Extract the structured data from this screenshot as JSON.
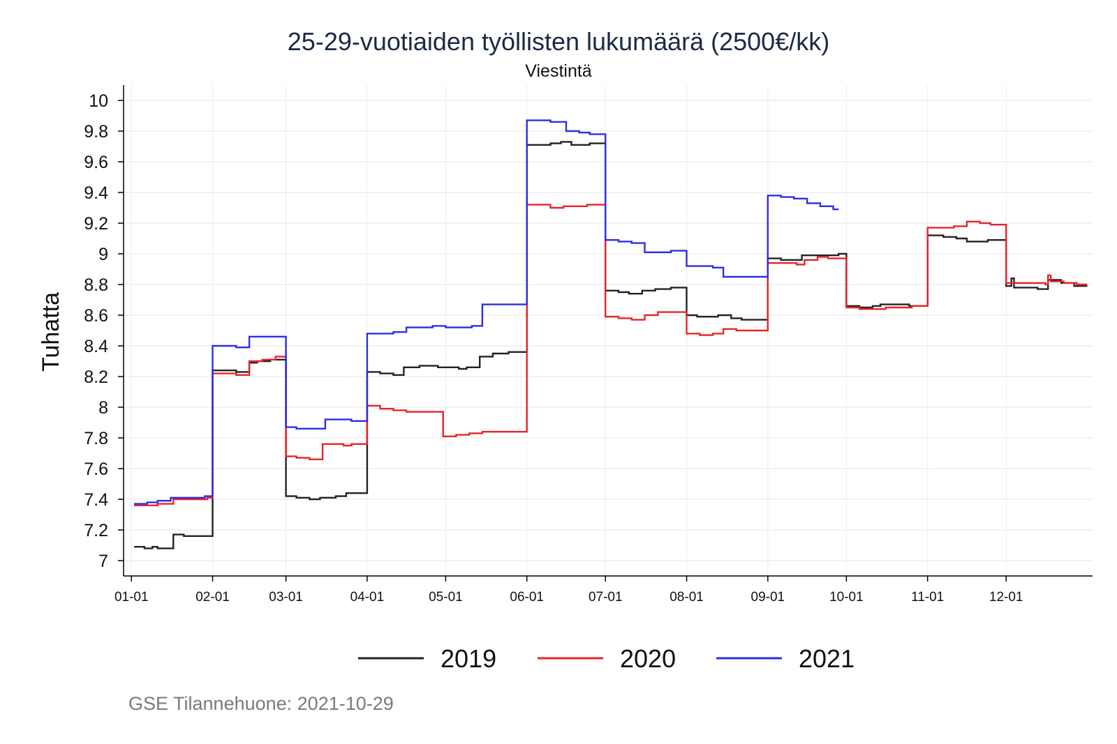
{
  "chart_data": {
    "type": "line",
    "step": true,
    "title": "25-29-vuotiaiden työllisten lukumäärä (2500€/kk)",
    "subtitle": "Viestintä",
    "ylabel": "Tuhatta",
    "xlabel": "",
    "source": "GSE Tilannehuone: 2021-10-29",
    "ylim": [
      6.9,
      10.1
    ],
    "xlim_days": [
      -3,
      367
    ],
    "y_ticks": [
      "7",
      "7.2",
      "7.4",
      "7.6",
      "7.8",
      "8",
      "8.2",
      "8.4",
      "8.6",
      "8.8",
      "9",
      "9.2",
      "9.4",
      "9.6",
      "9.8",
      "10"
    ],
    "x_ticks": [
      {
        "label": "01-01",
        "day": 0
      },
      {
        "label": "02-01",
        "day": 31
      },
      {
        "label": "03-01",
        "day": 59
      },
      {
        "label": "04-01",
        "day": 90
      },
      {
        "label": "05-01",
        "day": 120
      },
      {
        "label": "06-01",
        "day": 151
      },
      {
        "label": "07-01",
        "day": 181
      },
      {
        "label": "08-01",
        "day": 212
      },
      {
        "label": "09-01",
        "day": 243
      },
      {
        "label": "10-01",
        "day": 273
      },
      {
        "label": "11-01",
        "day": 304
      },
      {
        "label": "12-01",
        "day": 334
      }
    ],
    "legend_position": "bottom",
    "series": [
      {
        "name": "2019",
        "color": "#222222",
        "points": [
          [
            1,
            7.09
          ],
          [
            5,
            7.08
          ],
          [
            8,
            7.09
          ],
          [
            10,
            7.08
          ],
          [
            16,
            7.17
          ],
          [
            20,
            7.16
          ],
          [
            25,
            7.16
          ],
          [
            31,
            8.24
          ],
          [
            37,
            8.24
          ],
          [
            40,
            8.23
          ],
          [
            45,
            8.29
          ],
          [
            48,
            8.3
          ],
          [
            53,
            8.31
          ],
          [
            59,
            7.42
          ],
          [
            63,
            7.41
          ],
          [
            68,
            7.4
          ],
          [
            72,
            7.41
          ],
          [
            78,
            7.42
          ],
          [
            82,
            7.44
          ],
          [
            90,
            8.23
          ],
          [
            95,
            8.22
          ],
          [
            100,
            8.21
          ],
          [
            104,
            8.26
          ],
          [
            110,
            8.27
          ],
          [
            117,
            8.26
          ],
          [
            120,
            8.26
          ],
          [
            125,
            8.25
          ],
          [
            128,
            8.26
          ],
          [
            133,
            8.33
          ],
          [
            138,
            8.35
          ],
          [
            144,
            8.36
          ],
          [
            151,
            9.71
          ],
          [
            155,
            9.71
          ],
          [
            160,
            9.72
          ],
          [
            164,
            9.73
          ],
          [
            168,
            9.71
          ],
          [
            172,
            9.71
          ],
          [
            175,
            9.72
          ],
          [
            181,
            8.76
          ],
          [
            186,
            8.75
          ],
          [
            190,
            8.74
          ],
          [
            195,
            8.76
          ],
          [
            200,
            8.77
          ],
          [
            206,
            8.78
          ],
          [
            212,
            8.6
          ],
          [
            216,
            8.59
          ],
          [
            220,
            8.59
          ],
          [
            224,
            8.6
          ],
          [
            229,
            8.58
          ],
          [
            233,
            8.57
          ],
          [
            238,
            8.57
          ],
          [
            243,
            8.97
          ],
          [
            248,
            8.96
          ],
          [
            253,
            8.96
          ],
          [
            256,
            8.99
          ],
          [
            262,
            8.99
          ],
          [
            266,
            8.99
          ],
          [
            270,
            9.0
          ],
          [
            273,
            8.66
          ],
          [
            278,
            8.65
          ],
          [
            283,
            8.66
          ],
          [
            286,
            8.67
          ],
          [
            292,
            8.67
          ],
          [
            297,
            8.66
          ],
          [
            304,
            9.12
          ],
          [
            310,
            9.11
          ],
          [
            315,
            9.1
          ],
          [
            319,
            9.08
          ],
          [
            323,
            9.08
          ],
          [
            327,
            9.09
          ],
          [
            334,
            8.79
          ],
          [
            336,
            8.84
          ],
          [
            337,
            8.78
          ],
          [
            341,
            8.78
          ],
          [
            346,
            8.77
          ],
          [
            350,
            8.83
          ],
          [
            355,
            8.81
          ],
          [
            360,
            8.79
          ],
          [
            365,
            8.79
          ]
        ]
      },
      {
        "name": "2020",
        "color": "#e8232a",
        "points": [
          [
            1,
            7.36
          ],
          [
            6,
            7.36
          ],
          [
            10,
            7.37
          ],
          [
            16,
            7.4
          ],
          [
            20,
            7.4
          ],
          [
            25,
            7.4
          ],
          [
            29,
            7.41
          ],
          [
            31,
            8.22
          ],
          [
            36,
            8.22
          ],
          [
            40,
            8.21
          ],
          [
            45,
            8.3
          ],
          [
            50,
            8.31
          ],
          [
            55,
            8.33
          ],
          [
            59,
            7.68
          ],
          [
            63,
            7.67
          ],
          [
            68,
            7.66
          ],
          [
            73,
            7.76
          ],
          [
            78,
            7.76
          ],
          [
            81,
            7.75
          ],
          [
            84,
            7.76
          ],
          [
            90,
            8.01
          ],
          [
            95,
            7.99
          ],
          [
            100,
            7.98
          ],
          [
            105,
            7.97
          ],
          [
            113,
            7.97
          ],
          [
            119,
            7.81
          ],
          [
            124,
            7.82
          ],
          [
            129,
            7.83
          ],
          [
            134,
            7.84
          ],
          [
            139,
            7.84
          ],
          [
            144,
            7.84
          ],
          [
            151,
            9.32
          ],
          [
            155,
            9.32
          ],
          [
            160,
            9.3
          ],
          [
            165,
            9.31
          ],
          [
            170,
            9.31
          ],
          [
            174,
            9.32
          ],
          [
            181,
            8.59
          ],
          [
            186,
            8.58
          ],
          [
            191,
            8.57
          ],
          [
            196,
            8.6
          ],
          [
            201,
            8.62
          ],
          [
            206,
            8.62
          ],
          [
            212,
            8.48
          ],
          [
            217,
            8.47
          ],
          [
            222,
            8.48
          ],
          [
            226,
            8.51
          ],
          [
            231,
            8.5
          ],
          [
            236,
            8.5
          ],
          [
            243,
            8.94
          ],
          [
            248,
            8.94
          ],
          [
            254,
            8.93
          ],
          [
            257,
            8.96
          ],
          [
            262,
            8.98
          ],
          [
            266,
            8.97
          ],
          [
            273,
            8.65
          ],
          [
            278,
            8.64
          ],
          [
            283,
            8.64
          ],
          [
            288,
            8.65
          ],
          [
            293,
            8.65
          ],
          [
            298,
            8.66
          ],
          [
            304,
            9.17
          ],
          [
            309,
            9.17
          ],
          [
            314,
            9.18
          ],
          [
            319,
            9.21
          ],
          [
            324,
            9.2
          ],
          [
            328,
            9.19
          ],
          [
            334,
            8.81
          ],
          [
            339,
            8.81
          ],
          [
            344,
            8.81
          ],
          [
            349,
            8.8
          ],
          [
            350,
            8.86
          ],
          [
            351,
            8.82
          ],
          [
            356,
            8.81
          ],
          [
            361,
            8.8
          ],
          [
            365,
            8.8
          ]
        ]
      },
      {
        "name": "2021",
        "color": "#2d2de3",
        "points": [
          [
            1,
            7.37
          ],
          [
            6,
            7.38
          ],
          [
            10,
            7.39
          ],
          [
            15,
            7.41
          ],
          [
            20,
            7.41
          ],
          [
            25,
            7.41
          ],
          [
            28,
            7.42
          ],
          [
            31,
            8.4
          ],
          [
            36,
            8.4
          ],
          [
            40,
            8.39
          ],
          [
            45,
            8.46
          ],
          [
            50,
            8.46
          ],
          [
            55,
            8.46
          ],
          [
            59,
            7.87
          ],
          [
            63,
            7.86
          ],
          [
            68,
            7.86
          ],
          [
            74,
            7.92
          ],
          [
            79,
            7.92
          ],
          [
            84,
            7.91
          ],
          [
            90,
            8.48
          ],
          [
            95,
            8.48
          ],
          [
            100,
            8.49
          ],
          [
            105,
            8.52
          ],
          [
            110,
            8.52
          ],
          [
            115,
            8.53
          ],
          [
            120,
            8.52
          ],
          [
            126,
            8.52
          ],
          [
            130,
            8.53
          ],
          [
            134,
            8.67
          ],
          [
            139,
            8.67
          ],
          [
            145,
            8.67
          ],
          [
            151,
            9.87
          ],
          [
            155,
            9.87
          ],
          [
            160,
            9.86
          ],
          [
            166,
            9.8
          ],
          [
            171,
            9.79
          ],
          [
            175,
            9.78
          ],
          [
            181,
            9.09
          ],
          [
            186,
            9.08
          ],
          [
            191,
            9.07
          ],
          [
            196,
            9.01
          ],
          [
            201,
            9.01
          ],
          [
            206,
            9.02
          ],
          [
            212,
            8.92
          ],
          [
            217,
            8.92
          ],
          [
            222,
            8.91
          ],
          [
            226,
            8.85
          ],
          [
            231,
            8.85
          ],
          [
            236,
            8.85
          ],
          [
            243,
            9.38
          ],
          [
            248,
            9.37
          ],
          [
            253,
            9.36
          ],
          [
            258,
            9.33
          ],
          [
            263,
            9.31
          ],
          [
            268,
            9.29
          ],
          [
            270,
            9.29
          ]
        ]
      }
    ]
  }
}
